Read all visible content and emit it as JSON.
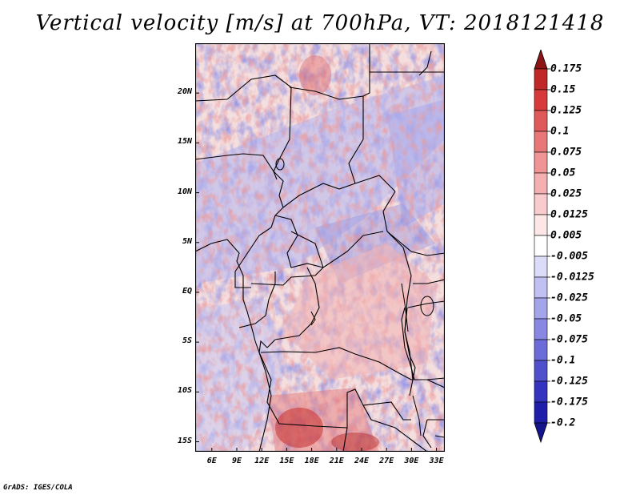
{
  "title": "Vertical velocity [m/s] at 700hPa, VT: 2018121418",
  "credit": "GrADS: IGES/COLA",
  "map": {
    "lon_range": [
      4,
      34
    ],
    "lat_range": [
      -16,
      25
    ],
    "lat_labels": [
      {
        "lat": 20,
        "text": "20N"
      },
      {
        "lat": 15,
        "text": "15N"
      },
      {
        "lat": 10,
        "text": "10N"
      },
      {
        "lat": 5,
        "text": "5N"
      },
      {
        "lat": 0,
        "text": "EQ"
      },
      {
        "lat": -5,
        "text": "5S"
      },
      {
        "lat": -10,
        "text": "10S"
      },
      {
        "lat": -15,
        "text": "15S"
      }
    ],
    "lon_labels": [
      {
        "lon": 6,
        "text": "6E"
      },
      {
        "lon": 9,
        "text": "9E"
      },
      {
        "lon": 12,
        "text": "12E"
      },
      {
        "lon": 15,
        "text": "15E"
      },
      {
        "lon": 18,
        "text": "18E"
      },
      {
        "lon": 21,
        "text": "21E"
      },
      {
        "lon": 24,
        "text": "24E"
      },
      {
        "lon": 27,
        "text": "27E"
      },
      {
        "lon": 30,
        "text": "30E"
      },
      {
        "lon": 33,
        "text": "33E"
      }
    ]
  },
  "colorbar": {
    "levels": [
      {
        "label": "0.175",
        "color": "#a81e1e"
      },
      {
        "label": "0.15",
        "color": "#c02828"
      },
      {
        "label": "0.125",
        "color": "#d73a3a"
      },
      {
        "label": "0.1",
        "color": "#e05a5a"
      },
      {
        "label": "0.075",
        "color": "#e87878"
      },
      {
        "label": "0.05",
        "color": "#ef9595"
      },
      {
        "label": "0.025",
        "color": "#f4b0b0"
      },
      {
        "label": "0.0125",
        "color": "#f8cccc"
      },
      {
        "label": "0.005",
        "color": "#fce6e6"
      },
      {
        "label": "-0.005",
        "color": "#ffffff"
      },
      {
        "label": "-0.0125",
        "color": "#dcdcf8"
      },
      {
        "label": "-0.025",
        "color": "#c0c0f2"
      },
      {
        "label": "-0.05",
        "color": "#a4a4ea"
      },
      {
        "label": "-0.075",
        "color": "#8888e2"
      },
      {
        "label": "-0.1",
        "color": "#6c6cd8"
      },
      {
        "label": "-0.125",
        "color": "#5050cc"
      },
      {
        "label": "-0.175",
        "color": "#3434be"
      },
      {
        "label": "-0.2",
        "color": "#1e1ea8"
      }
    ],
    "top_arrow_color": "#8c1414",
    "bottom_arrow_color": "#14148c"
  }
}
